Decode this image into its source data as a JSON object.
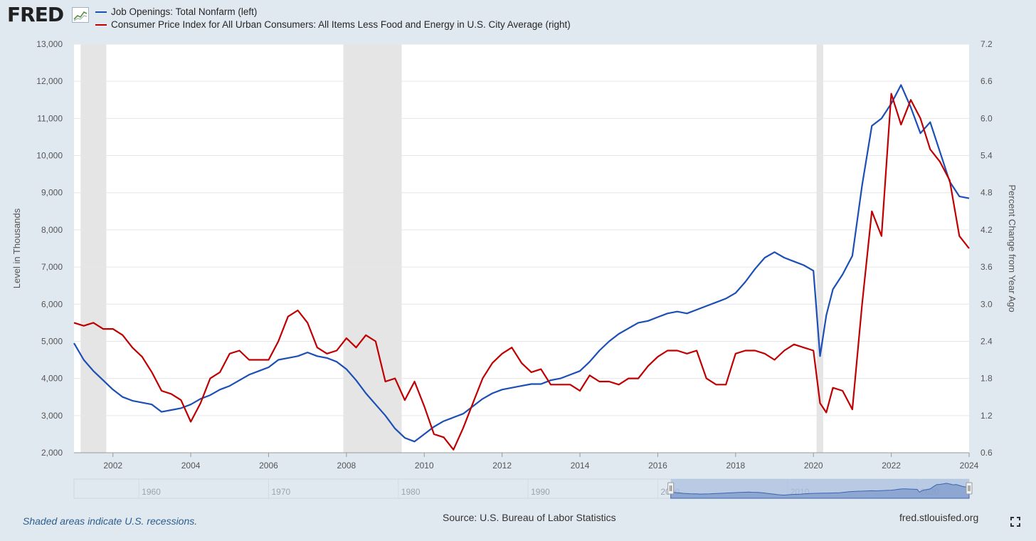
{
  "logo": "FRED",
  "logo_icon": "line-chart-icon",
  "chart_data": {
    "type": "line",
    "series": [
      {
        "name": "Job Openings: Total Nonfarm (left)",
        "axis": "left",
        "color": "#1c4fb5",
        "x": [
          2001.0,
          2001.25,
          2001.5,
          2001.75,
          2002.0,
          2002.25,
          2002.5,
          2002.75,
          2003.0,
          2003.25,
          2003.5,
          2003.75,
          2004.0,
          2004.25,
          2004.5,
          2004.75,
          2005.0,
          2005.25,
          2005.5,
          2005.75,
          2006.0,
          2006.25,
          2006.5,
          2006.75,
          2007.0,
          2007.25,
          2007.5,
          2007.75,
          2008.0,
          2008.25,
          2008.5,
          2008.75,
          2009.0,
          2009.25,
          2009.5,
          2009.75,
          2010.0,
          2010.25,
          2010.5,
          2010.75,
          2011.0,
          2011.25,
          2011.5,
          2011.75,
          2012.0,
          2012.25,
          2012.5,
          2012.75,
          2013.0,
          2013.25,
          2013.5,
          2013.75,
          2014.0,
          2014.25,
          2014.5,
          2014.75,
          2015.0,
          2015.25,
          2015.5,
          2015.75,
          2016.0,
          2016.25,
          2016.5,
          2016.75,
          2017.0,
          2017.25,
          2017.5,
          2017.75,
          2018.0,
          2018.25,
          2018.5,
          2018.75,
          2019.0,
          2019.25,
          2019.5,
          2019.75,
          2020.0,
          2020.17,
          2020.33,
          2020.5,
          2020.75,
          2021.0,
          2021.25,
          2021.5,
          2021.75,
          2022.0,
          2022.25,
          2022.5,
          2022.75,
          2023.0,
          2023.25,
          2023.5,
          2023.75,
          2024.0
        ],
        "values": [
          4950,
          4500,
          4200,
          3950,
          3700,
          3500,
          3400,
          3350,
          3300,
          3100,
          3150,
          3200,
          3300,
          3450,
          3550,
          3700,
          3800,
          3950,
          4100,
          4200,
          4300,
          4500,
          4550,
          4600,
          4700,
          4600,
          4550,
          4450,
          4250,
          3950,
          3600,
          3300,
          3000,
          2650,
          2400,
          2300,
          2500,
          2700,
          2850,
          2950,
          3050,
          3250,
          3450,
          3600,
          3700,
          3750,
          3800,
          3850,
          3850,
          3950,
          4000,
          4100,
          4200,
          4450,
          4750,
          5000,
          5200,
          5350,
          5500,
          5550,
          5650,
          5750,
          5800,
          5750,
          5850,
          5950,
          6050,
          6150,
          6300,
          6600,
          6950,
          7250,
          7400,
          7250,
          7150,
          7050,
          6900,
          4600,
          5700,
          6400,
          6800,
          7300,
          9200,
          10800,
          11000,
          11400,
          11900,
          11300,
          10600,
          10900,
          10100,
          9300,
          8900,
          8850
        ],
        "visible_values": "Level in Thousands"
      },
      {
        "name": "Consumer Price Index for All Urban Consumers: All Items Less Food and Energy in U.S. City Average (right)",
        "axis": "right",
        "color": "#c00000",
        "x": [
          2001.0,
          2001.25,
          2001.5,
          2001.75,
          2002.0,
          2002.25,
          2002.5,
          2002.75,
          2003.0,
          2003.25,
          2003.5,
          2003.75,
          2004.0,
          2004.25,
          2004.5,
          2004.75,
          2005.0,
          2005.25,
          2005.5,
          2005.75,
          2006.0,
          2006.25,
          2006.5,
          2006.75,
          2007.0,
          2007.25,
          2007.5,
          2007.75,
          2008.0,
          2008.25,
          2008.5,
          2008.75,
          2009.0,
          2009.25,
          2009.5,
          2009.75,
          2010.0,
          2010.25,
          2010.5,
          2010.75,
          2011.0,
          2011.25,
          2011.5,
          2011.75,
          2012.0,
          2012.25,
          2012.5,
          2012.75,
          2013.0,
          2013.25,
          2013.5,
          2013.75,
          2014.0,
          2014.25,
          2014.5,
          2014.75,
          2015.0,
          2015.25,
          2015.5,
          2015.75,
          2016.0,
          2016.25,
          2016.5,
          2016.75,
          2017.0,
          2017.25,
          2017.5,
          2017.75,
          2018.0,
          2018.25,
          2018.5,
          2018.75,
          2019.0,
          2019.25,
          2019.5,
          2019.75,
          2020.0,
          2020.17,
          2020.33,
          2020.5,
          2020.75,
          2021.0,
          2021.25,
          2021.5,
          2021.75,
          2022.0,
          2022.25,
          2022.5,
          2022.75,
          2023.0,
          2023.25,
          2023.5,
          2023.75,
          2024.0
        ],
        "values": [
          2.7,
          2.65,
          2.7,
          2.6,
          2.6,
          2.5,
          2.3,
          2.15,
          1.9,
          1.6,
          1.55,
          1.45,
          1.1,
          1.4,
          1.8,
          1.9,
          2.2,
          2.25,
          2.1,
          2.1,
          2.1,
          2.4,
          2.8,
          2.9,
          2.7,
          2.3,
          2.2,
          2.25,
          2.45,
          2.3,
          2.5,
          2.4,
          1.75,
          1.8,
          1.45,
          1.75,
          1.35,
          0.9,
          0.85,
          0.65,
          1.0,
          1.4,
          1.8,
          2.05,
          2.2,
          2.3,
          2.05,
          1.9,
          1.95,
          1.7,
          1.7,
          1.7,
          1.6,
          1.85,
          1.75,
          1.75,
          1.7,
          1.8,
          1.8,
          2.0,
          2.15,
          2.25,
          2.25,
          2.2,
          2.25,
          1.8,
          1.7,
          1.7,
          2.2,
          2.25,
          2.25,
          2.2,
          2.1,
          2.25,
          2.35,
          2.3,
          2.25,
          1.4,
          1.25,
          1.65,
          1.6,
          1.3,
          3.0,
          4.5,
          4.1,
          6.4,
          5.9,
          6.3,
          6.0,
          5.5,
          5.3,
          5.0,
          4.1,
          3.9
        ],
        "visible_values": "Percent Change from Year Ago"
      }
    ],
    "recessions": [
      [
        2001.17,
        2001.83
      ],
      [
        2007.92,
        2009.42
      ],
      [
        2020.08,
        2020.25
      ]
    ],
    "xlim": [
      2001.0,
      2024.0
    ],
    "x_ticks": [
      "2002",
      "2004",
      "2006",
      "2008",
      "2010",
      "2012",
      "2014",
      "2016",
      "2018",
      "2020",
      "2022",
      "2024"
    ],
    "x_tick_values": [
      2002,
      2004,
      2006,
      2008,
      2010,
      2012,
      2014,
      2016,
      2018,
      2020,
      2022,
      2024
    ],
    "ylim_left": [
      2000,
      13000
    ],
    "y_ticks_left": [
      "2,000",
      "3,000",
      "4,000",
      "5,000",
      "6,000",
      "7,000",
      "8,000",
      "9,000",
      "10,000",
      "11,000",
      "12,000",
      "13,000"
    ],
    "y_tick_values_left": [
      2000,
      3000,
      4000,
      5000,
      6000,
      7000,
      8000,
      9000,
      10000,
      11000,
      12000,
      13000
    ],
    "ylim_right": [
      0.6,
      7.2
    ],
    "y_ticks_right": [
      "0.6",
      "1.2",
      "1.8",
      "2.4",
      "3.0",
      "3.6",
      "4.2",
      "4.8",
      "5.4",
      "6.0",
      "6.6",
      "7.2"
    ],
    "y_tick_values_right": [
      0.6,
      1.2,
      1.8,
      2.4,
      3.0,
      3.6,
      4.2,
      4.8,
      5.4,
      6.0,
      6.6,
      7.2
    ],
    "ylabel_left": "Level in Thousands",
    "ylabel_right": "Percent Change from Year Ago",
    "grid": true,
    "legend_placement": "top-left"
  },
  "navigator": {
    "ticks": [
      "1960",
      "1970",
      "1980",
      "1990",
      "2000",
      "2010",
      "2020"
    ],
    "tick_values": [
      1960,
      1970,
      1980,
      1990,
      2000,
      2010,
      2020
    ],
    "range": [
      1955,
      2024
    ],
    "selected": [
      2001,
      2024
    ]
  },
  "footer": {
    "note": "Shaded areas indicate U.S. recessions.",
    "source": "Source: U.S. Bureau of Labor Statistics",
    "site": "fred.stlouisfed.org"
  },
  "icons": {
    "fullscreen": "fullscreen-icon",
    "handle": "range-handle-icon"
  }
}
